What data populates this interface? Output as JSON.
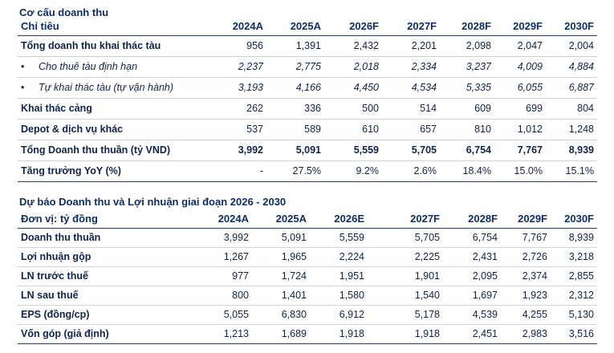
{
  "section1": {
    "title": "Cơ cấu doanh thu",
    "headers": [
      "Chỉ tiêu",
      "2024A",
      "2025A",
      "2026F",
      "2027F",
      "2028F",
      "2029F",
      "2030F"
    ],
    "rows": [
      {
        "label": "Tổng doanh thu khai thác tàu",
        "values": [
          "956",
          "1,391",
          "2,432",
          "2,201",
          "2,098",
          "2,047",
          "2,004"
        ]
      },
      {
        "bullet": "•",
        "label": "Cho thuê tàu định hạn",
        "values": [
          "2,237",
          "2,775",
          "2,018",
          "2,334",
          "3,237",
          "4,009",
          "4,884"
        ]
      },
      {
        "bullet": "•",
        "label": "Tự khai thác tàu (tự vận hành)",
        "values": [
          "3,193",
          "4,166",
          "4,450",
          "4,534",
          "5,335",
          "6,055",
          "6,887"
        ]
      },
      {
        "label": "Khai thác cảng",
        "values": [
          "262",
          "336",
          "500",
          "514",
          "609",
          "699",
          "804"
        ]
      },
      {
        "label": "Depot & dịch vụ khác",
        "values": [
          "537",
          "589",
          "610",
          "657",
          "810",
          "1,012",
          "1,248"
        ]
      },
      {
        "label": "Tổng Doanh thu thuần (tỷ VND)",
        "values": [
          "3,992",
          "5,091",
          "5,559",
          "5,705",
          "6,754",
          "7,767",
          "8,939"
        ]
      },
      {
        "label": "Tăng trưởng YoY (%)",
        "values": [
          "-",
          "27.5%",
          "9.2%",
          "2.6%",
          "18.4%",
          "15.0%",
          "15.1%"
        ]
      }
    ]
  },
  "section2": {
    "title": "Dự báo Doanh thu và Lợi nhuận giai đoạn 2026 - 2030",
    "headers": [
      "Đơn vị: tỷ đồng",
      "2024A",
      "2025A",
      "2026E",
      "2027F",
      "2028F",
      "2029F",
      "2030F"
    ],
    "rows": [
      {
        "label": "Doanh thu thuần",
        "values": [
          "3,992",
          "5,091",
          "5,559",
          "5,705",
          "6,754",
          "7,767",
          "8,939"
        ]
      },
      {
        "label": "Lợi nhuận gộp",
        "values": [
          "1,267",
          "1,965",
          "2,224",
          "2,225",
          "2,431",
          "2,726",
          "3,218"
        ]
      },
      {
        "label": "LN trước thuế",
        "values": [
          "977",
          "1,724",
          "1,951",
          "1,901",
          "2,095",
          "2,374",
          "2,855"
        ]
      },
      {
        "label": "LN sau thuế",
        "values": [
          "800",
          "1,401",
          "1,580",
          "1,540",
          "1,697",
          "1,923",
          "2,312"
        ]
      },
      {
        "label": "EPS (đồng/cp)",
        "values": [
          "5,055",
          "6,830",
          "6,912",
          "5,178",
          "4,539",
          "4,255",
          "5,130"
        ]
      },
      {
        "label": "Vốn góp (giả định)",
        "values": [
          "1,213",
          "1,689",
          "1,918",
          "1,918",
          "2,451",
          "2,983",
          "3,516"
        ]
      }
    ]
  }
}
